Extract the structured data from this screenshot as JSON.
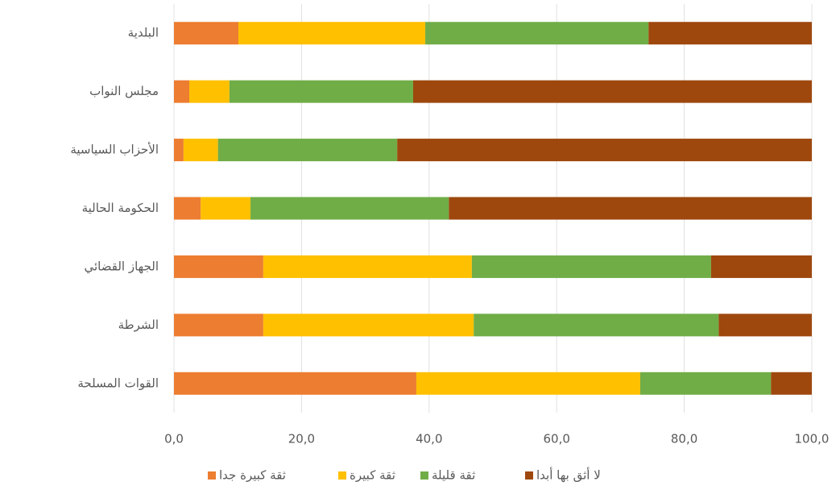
{
  "chart_data": {
    "type": "stacked_barh",
    "categories": [
      "البلدية",
      "مجلس النواب",
      "الأحزاب السياسية",
      "الحكومة الحالية",
      "الجهاز القضائي",
      "الشرطة",
      "القوات المسلحة"
    ],
    "series": [
      {
        "name": "ثقة كبيرة جدا",
        "color": "#ED7D31",
        "values": [
          10.1,
          2.4,
          1.5,
          4.2,
          14.0,
          14.0,
          38.0
        ]
      },
      {
        "name": "ثقة كبيرة",
        "color": "#FFC000",
        "values": [
          29.3,
          6.3,
          5.4,
          7.8,
          32.7,
          33.0,
          35.1
        ]
      },
      {
        "name": "ثقة قليلة",
        "color": "#70AD47",
        "values": [
          35.0,
          28.8,
          28.1,
          31.1,
          37.5,
          38.4,
          20.5
        ]
      },
      {
        "name": "لا أثق بها أبدا",
        "color": "#9E480E",
        "values": [
          25.6,
          62.5,
          65.0,
          56.9,
          15.8,
          14.6,
          6.4
        ]
      }
    ],
    "xlim": [
      0,
      100
    ],
    "xticks": [
      {
        "value": 0,
        "label": "0,0"
      },
      {
        "value": 20,
        "label": "20,0"
      },
      {
        "value": 40,
        "label": "40,0"
      },
      {
        "value": 60,
        "label": "60,0"
      },
      {
        "value": 80,
        "label": "80,0"
      },
      {
        "value": 100,
        "label": "100,0"
      }
    ],
    "grid": true,
    "legend": "bottom"
  }
}
